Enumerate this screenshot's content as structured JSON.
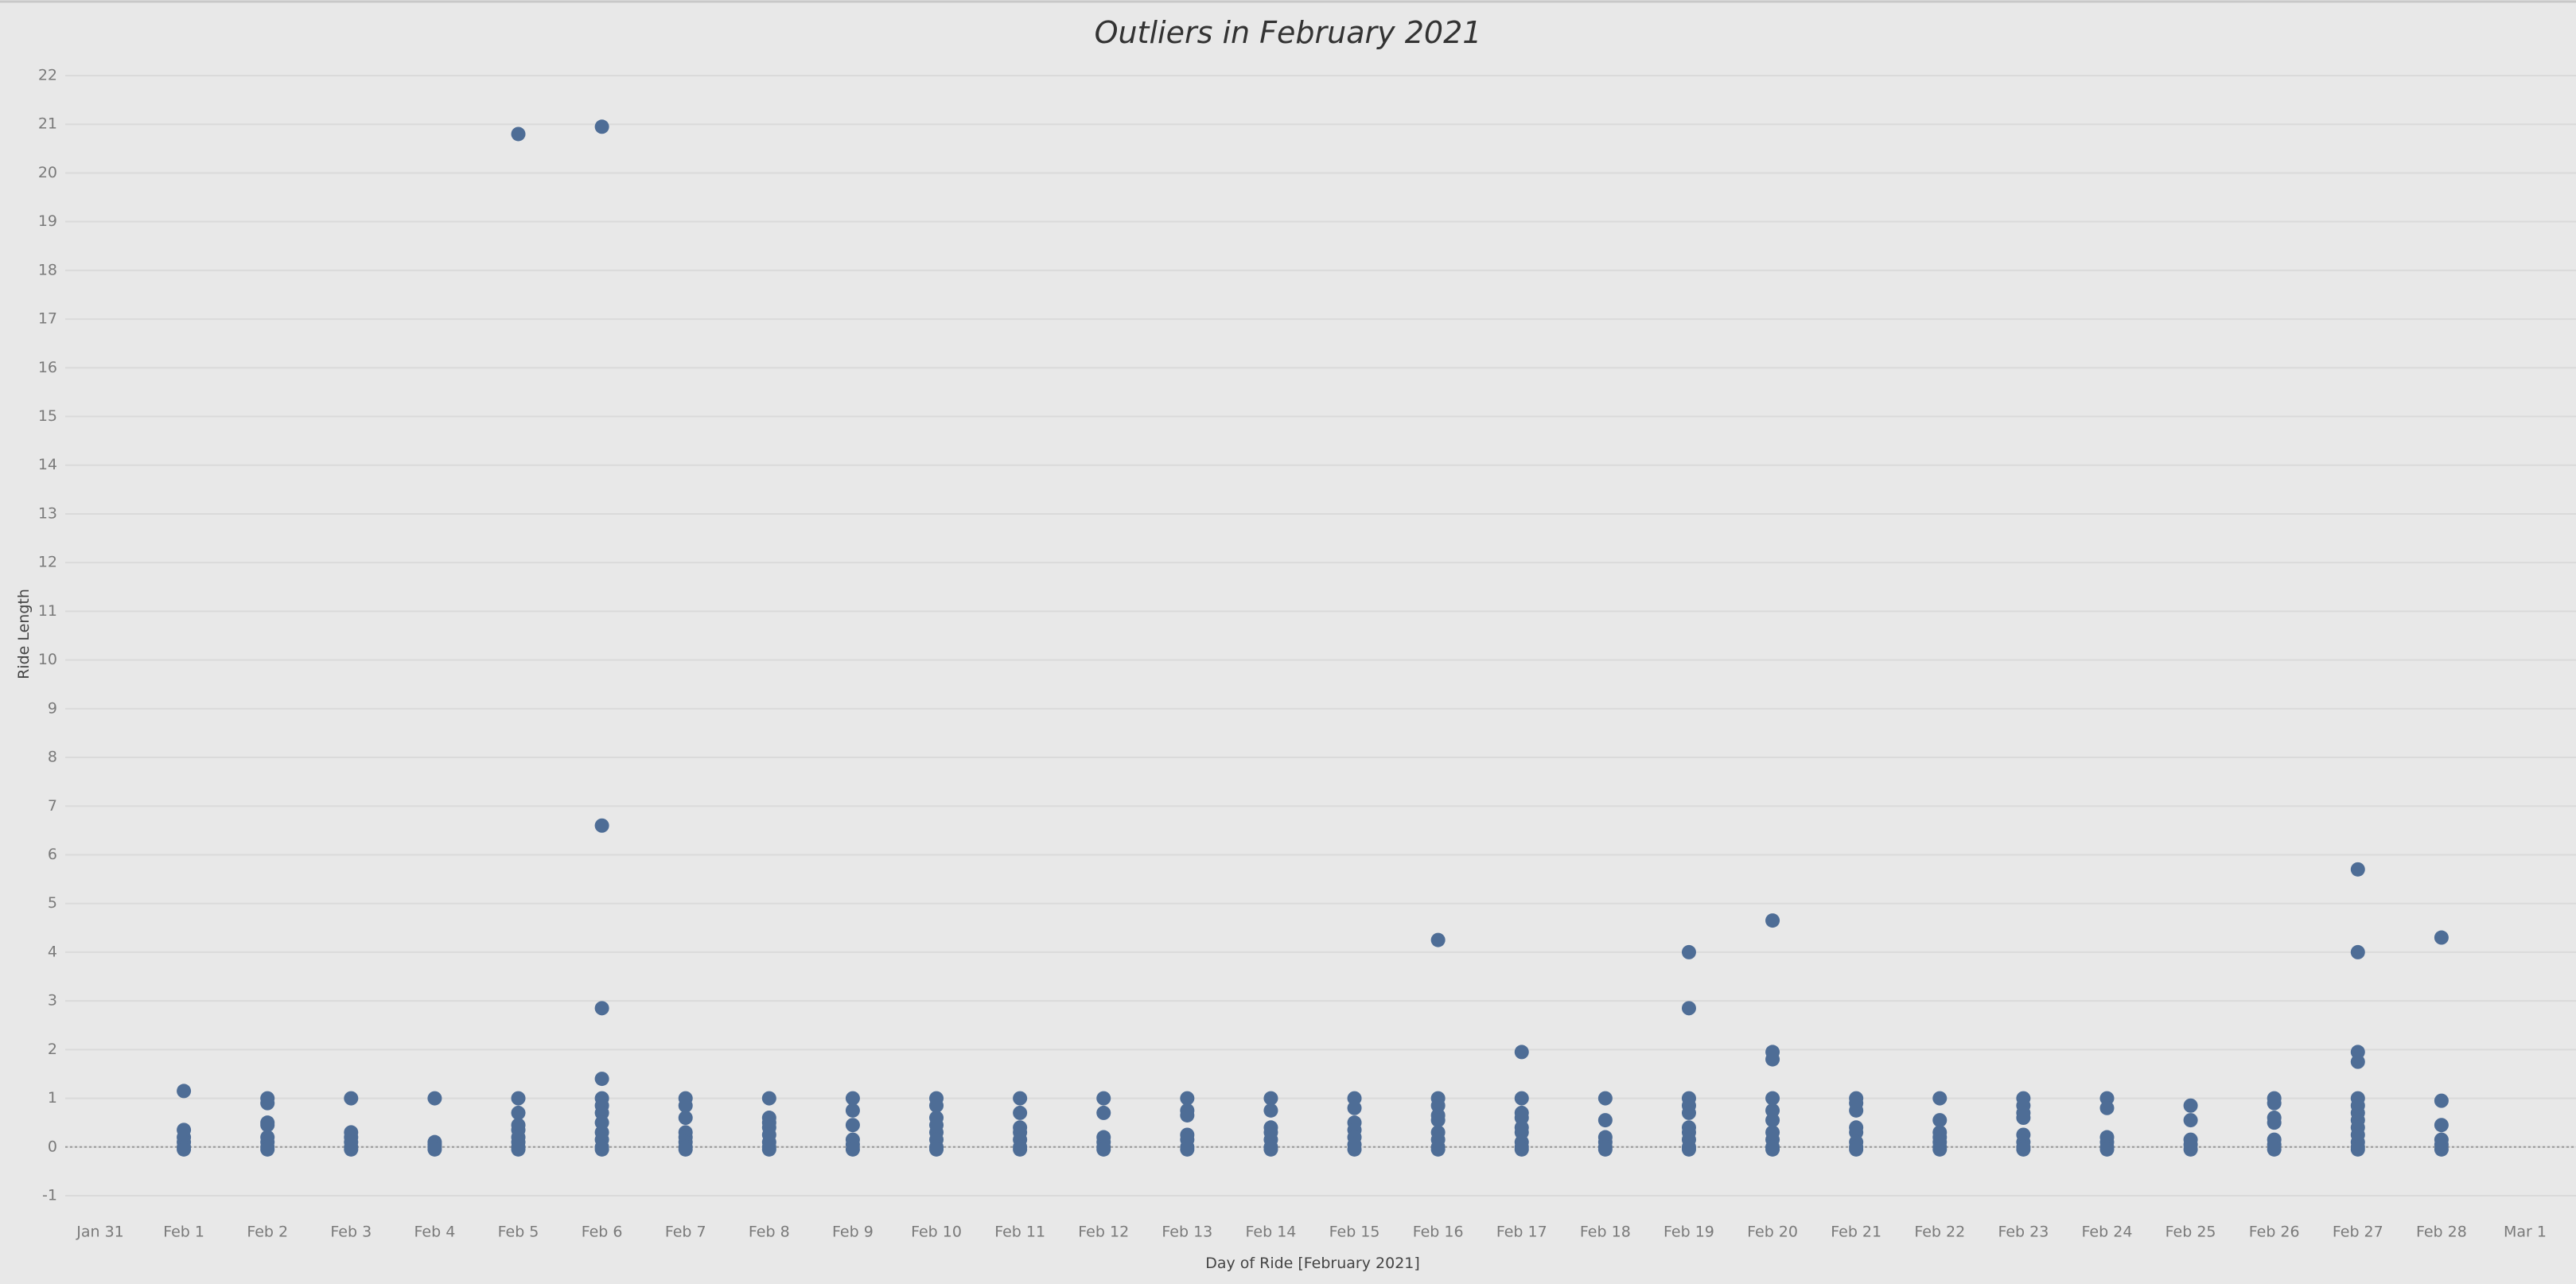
{
  "chart_data": {
    "type": "scatter",
    "title": "Outliers in February 2021",
    "x_label": "Day of Ride [February 2021]",
    "y_label": "Ride Length",
    "color": "#4e6d96",
    "grid": true,
    "ylim": [
      -1,
      22
    ],
    "yticks": [
      -1,
      0,
      1,
      2,
      3,
      4,
      5,
      6,
      7,
      8,
      9,
      10,
      11,
      12,
      13,
      14,
      15,
      16,
      17,
      18,
      19,
      20,
      21,
      22
    ],
    "xlim": [
      "Jan 31",
      "Mar 1"
    ],
    "xticks": [
      "Jan 31",
      "Feb 1",
      "Feb 2",
      "Feb 3",
      "Feb 4",
      "Feb 5",
      "Feb 6",
      "Feb 7",
      "Feb 8",
      "Feb 9",
      "Feb 10",
      "Feb 11",
      "Feb 12",
      "Feb 13",
      "Feb 14",
      "Feb 15",
      "Feb 16",
      "Feb 17",
      "Feb 18",
      "Feb 19",
      "Feb 20",
      "Feb 21",
      "Feb 22",
      "Feb 23",
      "Feb 24",
      "Feb 25",
      "Feb 26",
      "Feb 27",
      "Feb 28",
      "Mar 1"
    ],
    "x": [
      "Feb 1",
      "Feb 1",
      "Feb 1",
      "Feb 1",
      "Feb 1",
      "Feb 1",
      "Feb 2",
      "Feb 2",
      "Feb 2",
      "Feb 2",
      "Feb 2",
      "Feb 2",
      "Feb 2",
      "Feb 2",
      "Feb 3",
      "Feb 3",
      "Feb 3",
      "Feb 3",
      "Feb 3",
      "Feb 3",
      "Feb 4",
      "Feb 4",
      "Feb 4",
      "Feb 4",
      "Feb 4",
      "Feb 5",
      "Feb 5",
      "Feb 5",
      "Feb 5",
      "Feb 5",
      "Feb 5",
      "Feb 5",
      "Feb 5",
      "Feb 5",
      "Feb 6",
      "Feb 6",
      "Feb 6",
      "Feb 6",
      "Feb 6",
      "Feb 6",
      "Feb 6",
      "Feb 6",
      "Feb 6",
      "Feb 6",
      "Feb 6",
      "Feb 6",
      "Feb 7",
      "Feb 7",
      "Feb 7",
      "Feb 7",
      "Feb 7",
      "Feb 7",
      "Feb 7",
      "Feb 7",
      "Feb 8",
      "Feb 8",
      "Feb 8",
      "Feb 8",
      "Feb 8",
      "Feb 8",
      "Feb 8",
      "Feb 8",
      "Feb 9",
      "Feb 9",
      "Feb 9",
      "Feb 9",
      "Feb 9",
      "Feb 9",
      "Feb 10",
      "Feb 10",
      "Feb 10",
      "Feb 10",
      "Feb 10",
      "Feb 10",
      "Feb 10",
      "Feb 10",
      "Feb 11",
      "Feb 11",
      "Feb 11",
      "Feb 11",
      "Feb 11",
      "Feb 11",
      "Feb 11",
      "Feb 12",
      "Feb 12",
      "Feb 12",
      "Feb 12",
      "Feb 12",
      "Feb 12",
      "Feb 13",
      "Feb 13",
      "Feb 13",
      "Feb 13",
      "Feb 13",
      "Feb 13",
      "Feb 13",
      "Feb 14",
      "Feb 14",
      "Feb 14",
      "Feb 14",
      "Feb 14",
      "Feb 14",
      "Feb 14",
      "Feb 15",
      "Feb 15",
      "Feb 15",
      "Feb 15",
      "Feb 15",
      "Feb 15",
      "Feb 15",
      "Feb 16",
      "Feb 16",
      "Feb 16",
      "Feb 16",
      "Feb 16",
      "Feb 16",
      "Feb 16",
      "Feb 16",
      "Feb 16",
      "Feb 17",
      "Feb 17",
      "Feb 17",
      "Feb 17",
      "Feb 17",
      "Feb 17",
      "Feb 17",
      "Feb 17",
      "Feb 17",
      "Feb 18",
      "Feb 18",
      "Feb 18",
      "Feb 18",
      "Feb 18",
      "Feb 18",
      "Feb 19",
      "Feb 19",
      "Feb 19",
      "Feb 19",
      "Feb 19",
      "Feb 19",
      "Feb 19",
      "Feb 19",
      "Feb 19",
      "Feb 19",
      "Feb 20",
      "Feb 20",
      "Feb 20",
      "Feb 20",
      "Feb 20",
      "Feb 20",
      "Feb 20",
      "Feb 20",
      "Feb 20",
      "Feb 20",
      "Feb 21",
      "Feb 21",
      "Feb 21",
      "Feb 21",
      "Feb 21",
      "Feb 21",
      "Feb 21",
      "Feb 21",
      "Feb 22",
      "Feb 22",
      "Feb 22",
      "Feb 22",
      "Feb 22",
      "Feb 22",
      "Feb 22",
      "Feb 23",
      "Feb 23",
      "Feb 23",
      "Feb 23",
      "Feb 23",
      "Feb 23",
      "Feb 23",
      "Feb 23",
      "Feb 24",
      "Feb 24",
      "Feb 24",
      "Feb 24",
      "Feb 24",
      "Feb 24",
      "Feb 25",
      "Feb 25",
      "Feb 25",
      "Feb 25",
      "Feb 25",
      "Feb 26",
      "Feb 26",
      "Feb 26",
      "Feb 26",
      "Feb 26",
      "Feb 26",
      "Feb 26",
      "Feb 27",
      "Feb 27",
      "Feb 27",
      "Feb 27",
      "Feb 27",
      "Feb 27",
      "Feb 27",
      "Feb 27",
      "Feb 27",
      "Feb 27",
      "Feb 27",
      "Feb 27",
      "Feb 27",
      "Feb 28",
      "Feb 28",
      "Feb 28",
      "Feb 28",
      "Feb 28",
      "Feb 28"
    ],
    "values": [
      1.15,
      0.35,
      0.2,
      0.1,
      0,
      -0.05,
      1.0,
      0.9,
      0.5,
      0.45,
      0.2,
      0.1,
      0,
      -0.05,
      1.0,
      0.3,
      0.2,
      0.1,
      0,
      -0.05,
      1.0,
      0.1,
      0.05,
      0,
      -0.05,
      20.8,
      1.0,
      0.7,
      0.45,
      0.35,
      0.2,
      0.1,
      0,
      -0.05,
      20.95,
      6.6,
      2.85,
      1.4,
      1.0,
      0.85,
      0.7,
      0.5,
      0.3,
      0.15,
      0,
      -0.05,
      1.0,
      0.85,
      0.6,
      0.3,
      0.2,
      0.1,
      0,
      -0.05,
      1.0,
      0.6,
      0.5,
      0.4,
      0.25,
      0.1,
      0,
      -0.05,
      1.0,
      0.75,
      0.45,
      0.15,
      0.05,
      -0.05,
      1.0,
      0.85,
      0.6,
      0.45,
      0.3,
      0.15,
      0,
      -0.05,
      1.0,
      0.7,
      0.4,
      0.3,
      0.15,
      0,
      -0.05,
      1.0,
      0.7,
      0.2,
      0.1,
      0,
      -0.05,
      1.0,
      0.75,
      0.65,
      0.25,
      0.15,
      0,
      -0.05,
      1.0,
      0.75,
      0.4,
      0.3,
      0.15,
      0,
      -0.05,
      1.0,
      0.8,
      0.5,
      0.35,
      0.2,
      0.05,
      -0.05,
      4.25,
      1.0,
      0.85,
      0.65,
      0.55,
      0.3,
      0.15,
      0,
      -0.05,
      1.95,
      1.0,
      0.7,
      0.6,
      0.4,
      0.3,
      0.1,
      0,
      -0.05,
      1.0,
      0.55,
      0.2,
      0.1,
      0,
      -0.05,
      4.0,
      2.85,
      1.0,
      0.85,
      0.7,
      0.4,
      0.3,
      0.15,
      0,
      -0.05,
      4.65,
      1.95,
      1.8,
      1.0,
      0.75,
      0.55,
      0.3,
      0.15,
      0,
      -0.05,
      1.0,
      0.9,
      0.75,
      0.4,
      0.3,
      0.1,
      0,
      -0.05,
      1.0,
      0.55,
      0.3,
      0.2,
      0.1,
      0,
      -0.05,
      1.0,
      0.85,
      0.7,
      0.6,
      0.25,
      0.1,
      0,
      -0.05,
      1.0,
      0.8,
      0.2,
      0.1,
      0,
      -0.05,
      0.85,
      0.55,
      0.15,
      0.05,
      -0.05,
      1.0,
      0.9,
      0.6,
      0.5,
      0.15,
      0.05,
      -0.05,
      5.7,
      4.0,
      1.95,
      1.75,
      1.0,
      0.85,
      0.7,
      0.55,
      0.4,
      0.25,
      0.1,
      0,
      -0.05,
      4.3,
      0.95,
      0.45,
      0.15,
      0.05,
      -0.05
    ]
  }
}
